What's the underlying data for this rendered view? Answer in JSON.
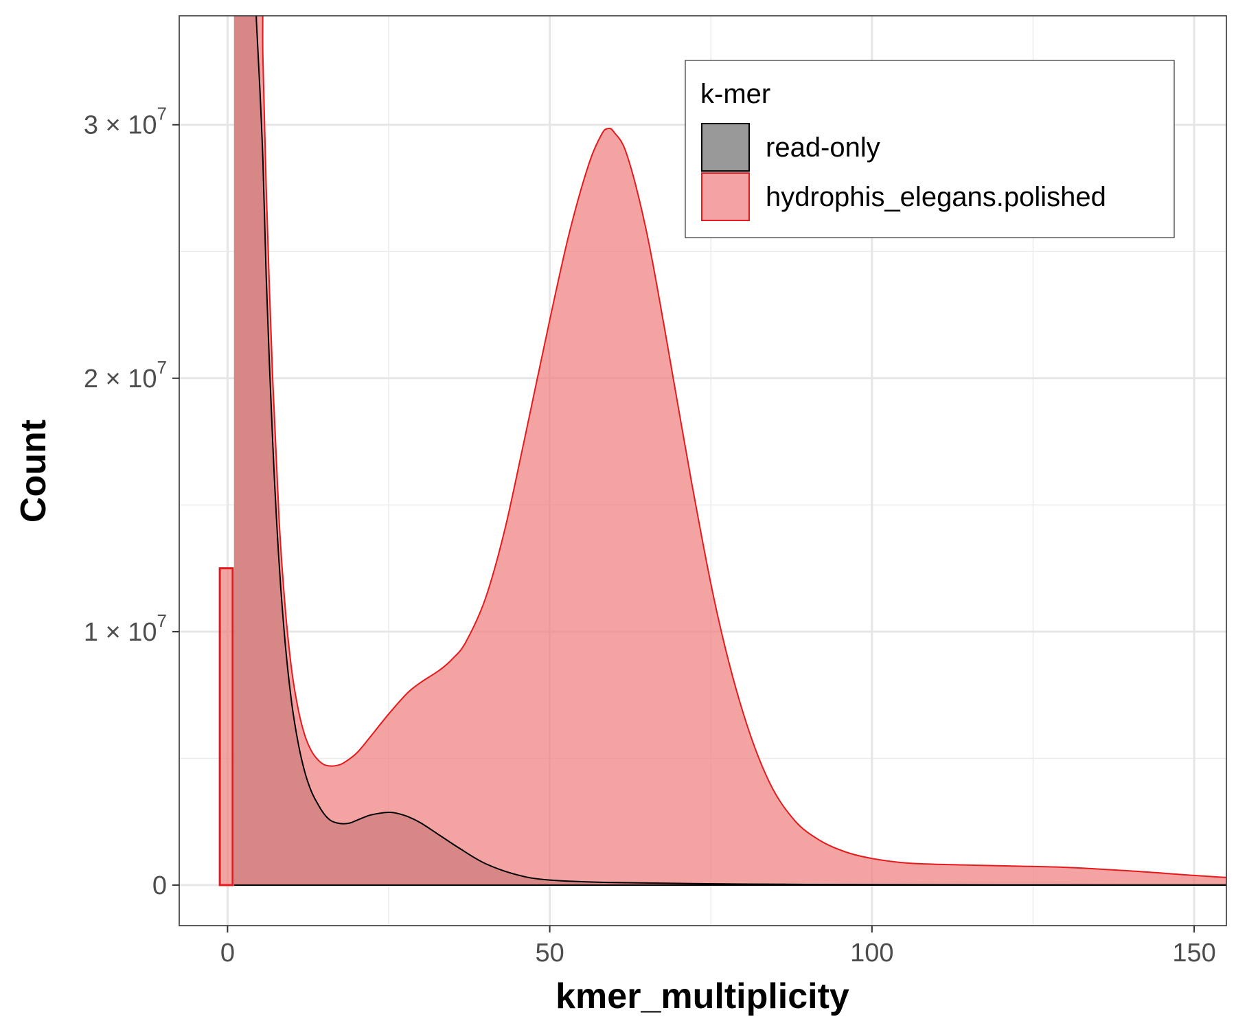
{
  "chart_data": {
    "type": "area",
    "xlabel": "kmer_multiplicity",
    "ylabel": "Count",
    "xlim": [
      -7.5,
      155
    ],
    "ylim": [
      -1600000,
      34300000
    ],
    "x_ticks": [
      {
        "value": 0,
        "label": "0"
      },
      {
        "value": 50,
        "label": "50"
      },
      {
        "value": 100,
        "label": "100"
      },
      {
        "value": 150,
        "label": "150"
      }
    ],
    "x_minor_ticks": [
      25,
      75,
      125
    ],
    "y_ticks": [
      {
        "value": 0,
        "mantissa": "0",
        "exponent": ""
      },
      {
        "value": 10000000,
        "mantissa": "1 × 10",
        "exponent": "7"
      },
      {
        "value": 20000000,
        "mantissa": "2 × 10",
        "exponent": "7"
      },
      {
        "value": 30000000,
        "mantissa": "3 × 10",
        "exponent": "7"
      }
    ],
    "y_minor_ticks": [
      5000000,
      15000000,
      25000000
    ],
    "grid": true,
    "legend": {
      "title": "k-mer",
      "position": "top-right",
      "entries": [
        "read-only",
        "hydrophis_elegans.polished"
      ]
    },
    "series": [
      {
        "name": "read-only",
        "fill": "#999999",
        "stroke": "#000000",
        "x": [
          1,
          4,
          4.5,
          5,
          5.5,
          6,
          7,
          8,
          9,
          10,
          11,
          12,
          13,
          14,
          15,
          16,
          17,
          18,
          19,
          20,
          22,
          24,
          25,
          26,
          28,
          30,
          33,
          36,
          40,
          45,
          50,
          60,
          80,
          100,
          120,
          140,
          155
        ],
        "y": [
          36000000,
          36000000,
          34000000,
          31500000,
          28500000,
          24000000,
          17500000,
          12700000,
          9400000,
          7100000,
          5550000,
          4450000,
          3700000,
          3200000,
          2800000,
          2550000,
          2450000,
          2420000,
          2450000,
          2550000,
          2750000,
          2850000,
          2870000,
          2850000,
          2700000,
          2450000,
          1950000,
          1450000,
          850000,
          400000,
          200000,
          100000,
          40000,
          20000,
          10000,
          5000,
          3000
        ]
      },
      {
        "name": "hydrophis_elegans.polished",
        "fill": "#f08080",
        "stroke": "#e41a1c",
        "x": [
          1,
          5,
          5.5,
          6,
          7,
          8,
          9,
          10,
          11,
          12,
          13,
          14,
          15,
          16,
          17,
          18,
          20,
          22,
          25,
          28,
          30,
          33,
          35,
          37,
          40,
          43,
          46,
          50,
          53,
          56,
          58,
          59,
          60,
          62,
          65,
          68,
          72,
          76,
          80,
          84,
          88,
          92,
          96,
          100,
          105,
          110,
          120,
          130,
          140,
          150,
          155
        ],
        "y": [
          36000000,
          36000000,
          32500000,
          27500000,
          20000000,
          14400000,
          10800000,
          8400000,
          6900000,
          5900000,
          5300000,
          4950000,
          4750000,
          4700000,
          4720000,
          4820000,
          5200000,
          5800000,
          6750000,
          7600000,
          8000000,
          8500000,
          8950000,
          9600000,
          11300000,
          14000000,
          17500000,
          22300000,
          25700000,
          28400000,
          29600000,
          29850000,
          29700000,
          28800000,
          25800000,
          21700000,
          15900000,
          10700000,
          6800000,
          4100000,
          2550000,
          1750000,
          1300000,
          1050000,
          880000,
          820000,
          760000,
          700000,
          560000,
          380000,
          300000
        ]
      },
      {
        "name": "",
        "type": "bar",
        "fill": "#f08080",
        "stroke": "#e41a1c",
        "x_start": -1.2,
        "x_end": 0.8,
        "y": 12500000
      }
    ]
  }
}
